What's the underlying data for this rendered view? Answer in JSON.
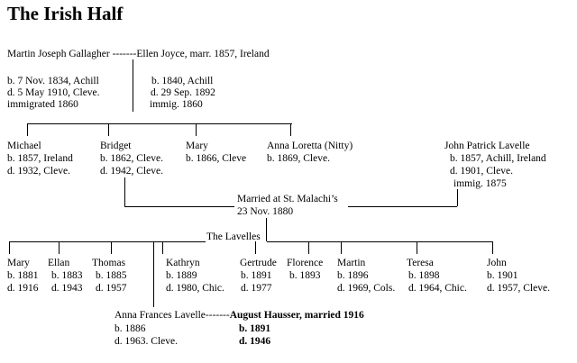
{
  "title": "The Irish Half",
  "gen1": {
    "couple": "Martin Joseph Gallagher -------Ellen Joyce, marr. 1857, Ireland",
    "martin": [
      "b. 7 Nov. 1834, Achill",
      "d. 5 May 1910, Cleve.",
      "immigrated 1860"
    ],
    "ellen": [
      "b. 1840, Achill",
      "d. 29 Sep. 1892",
      "immig. 1860"
    ]
  },
  "gen2": {
    "children": [
      {
        "name": "Michael",
        "lines": [
          "b. 1857, Ireland",
          "d. 1932, Cleve."
        ]
      },
      {
        "name": "Bridget",
        "lines": [
          "b. 1862, Cleve.",
          "d. 1942, Cleve."
        ]
      },
      {
        "name": "Mary",
        "lines": [
          "b. 1866, Cleve"
        ]
      },
      {
        "name": "Anna Loretta (Nitty)",
        "lines": [
          "b. 1869, Cleve."
        ]
      }
    ],
    "spouse": {
      "name": "John Patrick Lavelle",
      "lines": [
        "b. 1857, Achill, Ireland",
        "d. 1901, Cleve.",
        "immig. 1875"
      ]
    },
    "marriage": [
      "Married at St. Malachi’s",
      "23 Nov. 1880"
    ]
  },
  "gen3": {
    "label": "The Lavelles",
    "children": [
      {
        "name": "Mary",
        "lines": [
          "b. 1881",
          "d. 1916"
        ]
      },
      {
        "name": "Ellan",
        "lines": [
          "b. 1883",
          "d. 1943"
        ]
      },
      {
        "name": "Thomas",
        "lines": [
          "b. 1885",
          "d. 1957"
        ]
      },
      {
        "name": "Kathryn",
        "lines": [
          "b. 1889",
          "d. 1980, Chic."
        ]
      },
      {
        "name": "Gertrude",
        "lines": [
          "b. 1891",
          "d. 1977"
        ]
      },
      {
        "name": "Florence",
        "lines": [
          "b. 1893"
        ]
      },
      {
        "name": "Martin",
        "lines": [
          "b. 1896",
          "d. 1969, Cols."
        ]
      },
      {
        "name": "Teresa",
        "lines": [
          "b. 1898",
          "d. 1964, Chic."
        ]
      },
      {
        "name": "John",
        "lines": [
          "b. 1901",
          "d. 1957, Cleve."
        ]
      }
    ]
  },
  "gen4": {
    "anna_name": "Anna Frances Lavelle",
    "connector": "-------",
    "august": "August Hausser, married 1916",
    "anna_lines": [
      "b. 1886",
      "d. 1963. Cleve."
    ],
    "august_lines": [
      "b. 1891",
      "d. 1946"
    ]
  }
}
